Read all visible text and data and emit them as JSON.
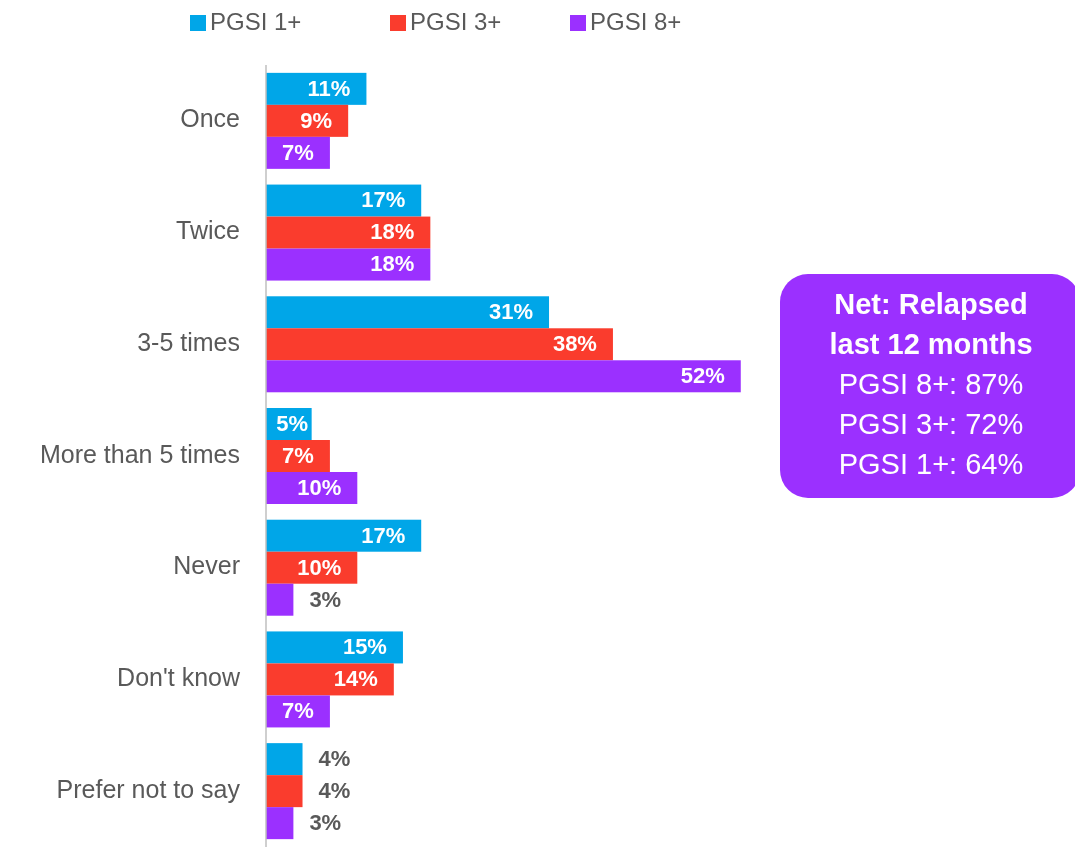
{
  "chart_data": {
    "type": "bar",
    "orientation": "horizontal",
    "categories": [
      "Once",
      "Twice",
      "3-5 times",
      "More than 5 times",
      "Never",
      "Don't know",
      "Prefer not to say"
    ],
    "series": [
      {
        "name": "PGSI 1+",
        "color": "#00a6e8",
        "values": [
          11,
          17,
          31,
          5,
          17,
          15,
          4
        ],
        "value_labels": [
          "11%",
          "17%",
          "31%",
          "5%",
          "17%",
          "15%",
          "4%"
        ]
      },
      {
        "name": "PGSI 3+",
        "color": "#fa3c2d",
        "values": [
          9,
          18,
          38,
          7,
          10,
          14,
          4
        ],
        "value_labels": [
          "9%",
          "18%",
          "38%",
          "7%",
          "10%",
          "14%",
          "4%"
        ]
      },
      {
        "name": "PGSI 8+",
        "color": "#9b30ff",
        "values": [
          7,
          18,
          52,
          10,
          3,
          7,
          3
        ],
        "value_labels": [
          "7%",
          "18%",
          "52%",
          "10%",
          "3%",
          "7%",
          "3%"
        ]
      }
    ],
    "legend": "top",
    "annotations": [
      "Net: Relapsed last 12 months",
      "PGSI 8+: 87%",
      "PGSI 3+: 72%",
      "PGSI 1+: 64%"
    ]
  }
}
